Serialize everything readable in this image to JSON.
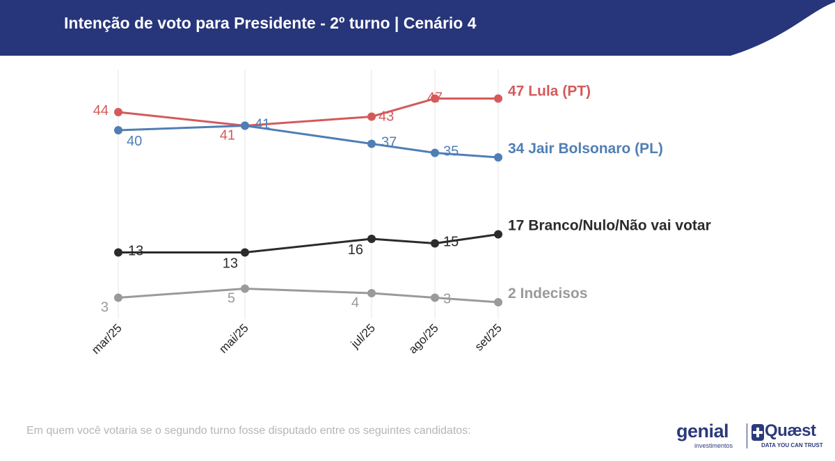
{
  "header": {
    "title": "Intenção de voto para Presidente - 2º turno | Cenário 4"
  },
  "colors": {
    "header_bg": "#27357a",
    "lula": "#d45a5a",
    "bolsonaro": "#4f7eb5",
    "branco": "#2b2b2b",
    "indecisos": "#9a9a9a",
    "grid": "#e6e6e6"
  },
  "chart_data": {
    "type": "line",
    "categories": [
      "mar/25",
      "mai/25",
      "jul/25",
      "ago/25",
      "set/25"
    ],
    "x_months": [
      3,
      5,
      7,
      8,
      9
    ],
    "ylim": [
      0,
      50
    ],
    "grid": "vertical",
    "series": [
      {
        "name": "Lula (PT)",
        "values": [
          44,
          41,
          43,
          47,
          47
        ],
        "end_label": "47 Lula (PT)"
      },
      {
        "name": "Jair Bolsonaro (PL)",
        "values": [
          40,
          41,
          37,
          35,
          34
        ],
        "end_label": "34 Jair Bolsonaro (PL)"
      },
      {
        "name": "Branco/Nulo/Não vai votar",
        "values": [
          13,
          13,
          16,
          15,
          17
        ],
        "end_label": "17 Branco/Nulo/Não vai votar"
      },
      {
        "name": "Indecisos",
        "values": [
          3,
          5,
          4,
          3,
          2
        ],
        "end_label": "2 Indecisos"
      }
    ]
  },
  "footer": {
    "note": "Em quem você votaria se o segundo turno fosse disputado entre os seguintes candidatos:",
    "logo_genial": "genial",
    "logo_genial_sub": "investimentos",
    "logo_quaest": "Quæst",
    "logo_quaest_sub": "DATA YOU CAN TRUST"
  }
}
